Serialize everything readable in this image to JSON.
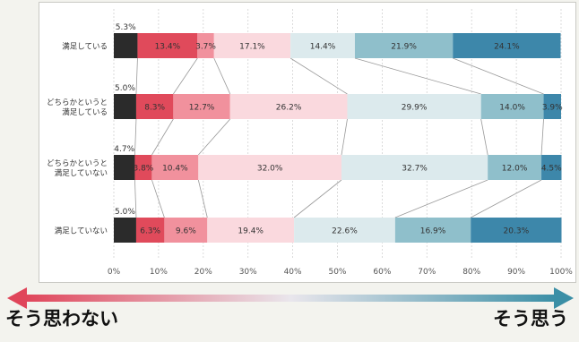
{
  "chart_data": {
    "type": "bar",
    "orientation": "horizontal",
    "stacked": true,
    "categories": [
      "満足している",
      "どちらかというと満足している",
      "どちらかというと満足していない",
      "満足していない"
    ],
    "category_lines": [
      [
        "満足している"
      ],
      [
        "どちらかというと",
        "満足している"
      ],
      [
        "どちらかというと",
        "満足していない"
      ],
      [
        "満足していない"
      ]
    ],
    "series_values": [
      [
        5.3,
        13.4,
        3.7,
        17.1,
        14.4,
        21.9,
        24.1
      ],
      [
        5.0,
        8.3,
        12.7,
        26.2,
        29.9,
        14.0,
        3.9
      ],
      [
        4.7,
        3.8,
        10.4,
        32.0,
        32.7,
        12.0,
        4.5
      ],
      [
        5.0,
        6.3,
        9.6,
        19.4,
        22.6,
        16.9,
        20.3
      ]
    ],
    "value_labels": [
      [
        "5.3%",
        "13.4%",
        "3.7%",
        "17.1%",
        "14.4%",
        "21.9%",
        "24.1%"
      ],
      [
        "5.0%",
        "8.3%",
        "12.7%",
        "26.2%",
        "29.9%",
        "14.0%",
        "3.9%"
      ],
      [
        "4.7%",
        "3.8%",
        "10.4%",
        "32.0%",
        "32.7%",
        "12.0%",
        "4.5%"
      ],
      [
        "5.0%",
        "6.3%",
        "9.6%",
        "19.4%",
        "22.6%",
        "16.9%",
        "20.3%"
      ]
    ],
    "series_colors": [
      "#2b2b2b",
      "#e04a5b",
      "#f1919d",
      "#fad9de",
      "#dceaed",
      "#8fbfcb",
      "#3d87aa"
    ],
    "xlim": [
      0,
      100
    ],
    "x_ticks": [
      "0%",
      "10%",
      "20%",
      "30%",
      "40%",
      "50%",
      "60%",
      "70%",
      "80%",
      "90%",
      "100%"
    ],
    "grid": true,
    "connector_lines": true
  },
  "arrow": {
    "left_label": "そう思わない",
    "right_label": "そう思う",
    "left_color": "#e0455a",
    "right_color": "#3b8fa6"
  }
}
